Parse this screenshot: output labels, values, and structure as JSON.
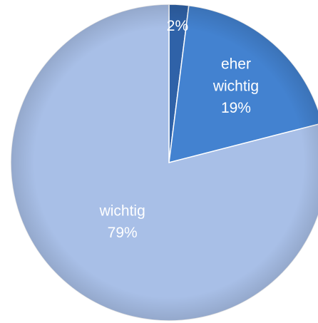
{
  "chart_data": {
    "type": "pie",
    "categories": [
      null,
      "eher wichtig",
      "wichtig"
    ],
    "values": [
      2,
      19,
      79
    ],
    "value_labels": [
      "2%",
      "19%",
      "79%"
    ],
    "colors": [
      "#2f62a8",
      "#4382d0",
      "#a8bfe7"
    ]
  }
}
